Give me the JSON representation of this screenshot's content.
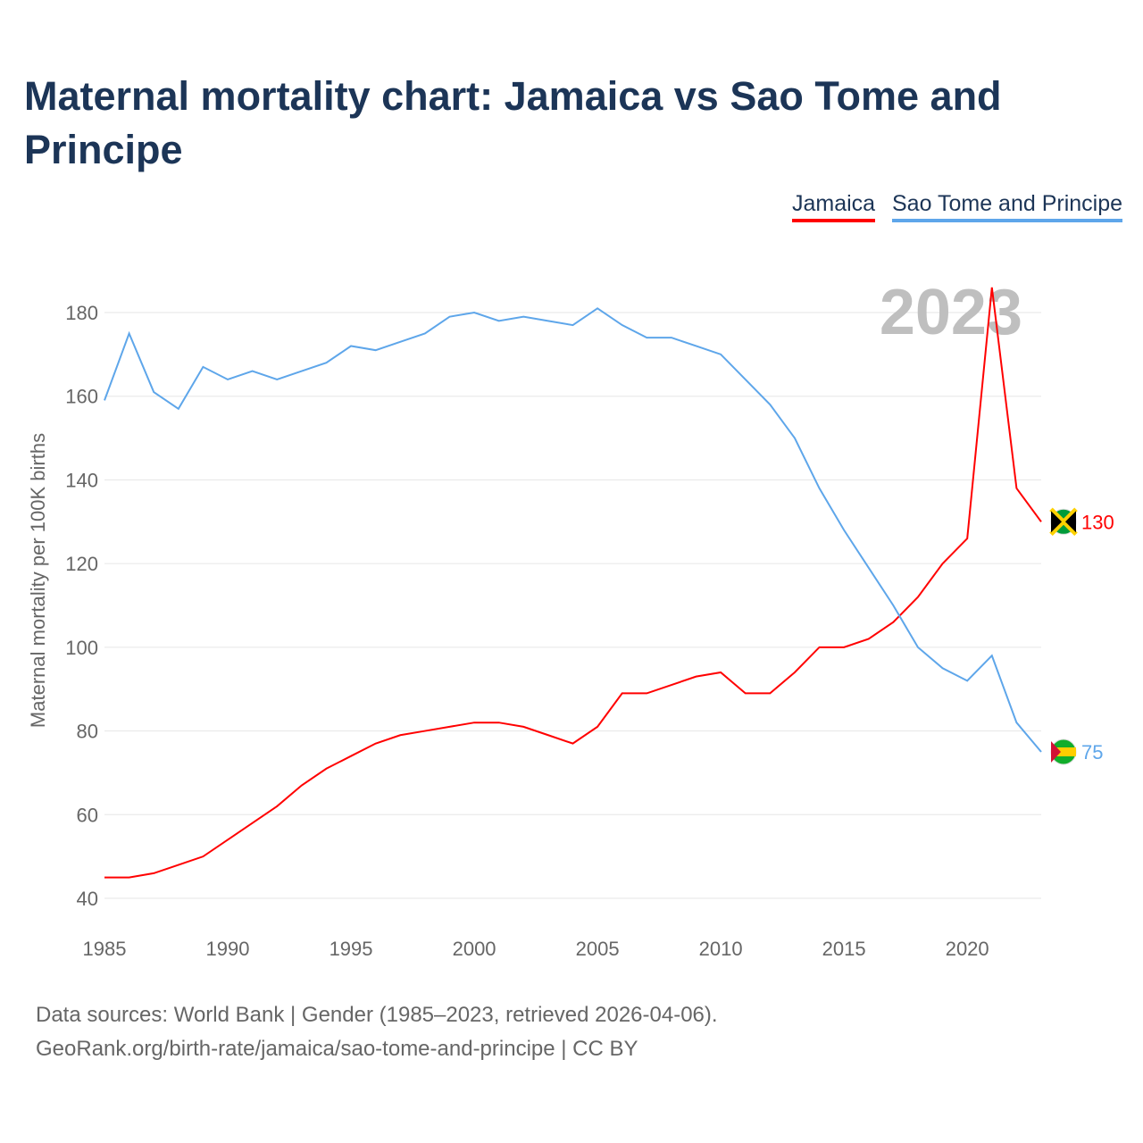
{
  "title": "Maternal mortality chart: Jamaica vs Sao Tome and Principe",
  "footer": {
    "line1": "Data sources: World Bank | Gender (1985–2023, retrieved 2026-04-06).",
    "line2": "GeoRank.org/birth-rate/jamaica/sao-tome-and-principe | CC BY"
  },
  "chart_data": {
    "type": "line",
    "title": "Maternal mortality chart: Jamaica vs Sao Tome and Principe",
    "xlabel": "",
    "ylabel": "Maternal mortality per 100K births",
    "year_label": "2023",
    "xlim": [
      1985,
      2023
    ],
    "ylim": [
      40,
      190
    ],
    "yticks": [
      40,
      60,
      80,
      100,
      120,
      140,
      160,
      180
    ],
    "xticks": [
      1985,
      1990,
      1995,
      2000,
      2005,
      2010,
      2015,
      2020
    ],
    "grid": true,
    "legend_position": "top-right",
    "x": [
      1985,
      1986,
      1987,
      1988,
      1989,
      1990,
      1991,
      1992,
      1993,
      1994,
      1995,
      1996,
      1997,
      1998,
      1999,
      2000,
      2001,
      2002,
      2003,
      2004,
      2005,
      2006,
      2007,
      2008,
      2009,
      2010,
      2011,
      2012,
      2013,
      2014,
      2015,
      2016,
      2017,
      2018,
      2019,
      2020,
      2021,
      2022,
      2023
    ],
    "series": [
      {
        "name": "Jamaica",
        "color": "#ff0000",
        "end_label": "130",
        "values": [
          45,
          45,
          46,
          48,
          50,
          54,
          58,
          62,
          67,
          71,
          74,
          77,
          79,
          80,
          81,
          82,
          82,
          81,
          79,
          77,
          81,
          89,
          89,
          91,
          93,
          94,
          89,
          89,
          94,
          100,
          100,
          102,
          106,
          112,
          120,
          126,
          186,
          138,
          130
        ]
      },
      {
        "name": "Sao Tome and Principe",
        "color": "#5ea6ea",
        "end_label": "75",
        "values": [
          159,
          175,
          161,
          157,
          167,
          164,
          166,
          164,
          166,
          168,
          172,
          171,
          173,
          175,
          179,
          180,
          178,
          179,
          178,
          177,
          181,
          177,
          174,
          174,
          172,
          170,
          164,
          158,
          150,
          138,
          128,
          119,
          110,
          100,
          95,
          92,
          98,
          82,
          75
        ]
      }
    ]
  }
}
